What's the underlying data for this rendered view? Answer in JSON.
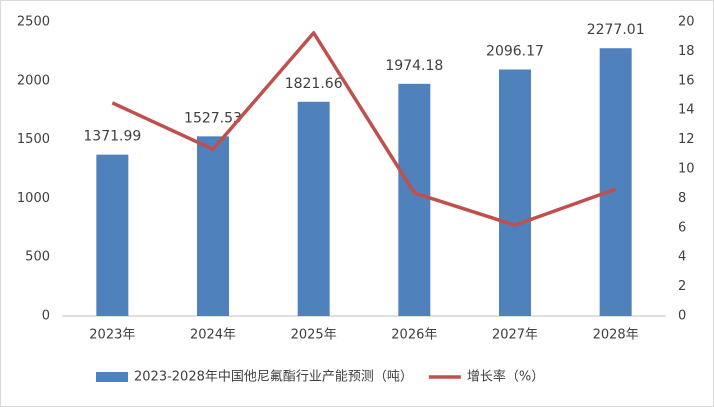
{
  "chart_data": {
    "type": "bar-line",
    "categories": [
      "2023年",
      "2024年",
      "2025年",
      "2026年",
      "2027年",
      "2028年"
    ],
    "series": [
      {
        "name": "2023-2028年中国他尼氟酯行业产能预测（吨）",
        "type": "bar",
        "color": "#4f81bd",
        "values": [
          1371.99,
          1527.53,
          1821.66,
          1974.18,
          2096.17,
          2277.01
        ]
      },
      {
        "name": "增长率（%）",
        "type": "line",
        "axis": "y2",
        "color": "#c0504d",
        "values": [
          14.5,
          11.34,
          19.26,
          8.37,
          6.18,
          8.63
        ]
      }
    ],
    "ylim": [
      0,
      2500
    ],
    "yticks": [
      0,
      500,
      1000,
      1500,
      2000,
      2500
    ],
    "y2lim": [
      0,
      20
    ],
    "y2ticks": [
      0,
      2,
      4,
      6,
      8,
      10,
      12,
      14,
      16,
      18,
      20
    ],
    "legend": "bottom"
  }
}
